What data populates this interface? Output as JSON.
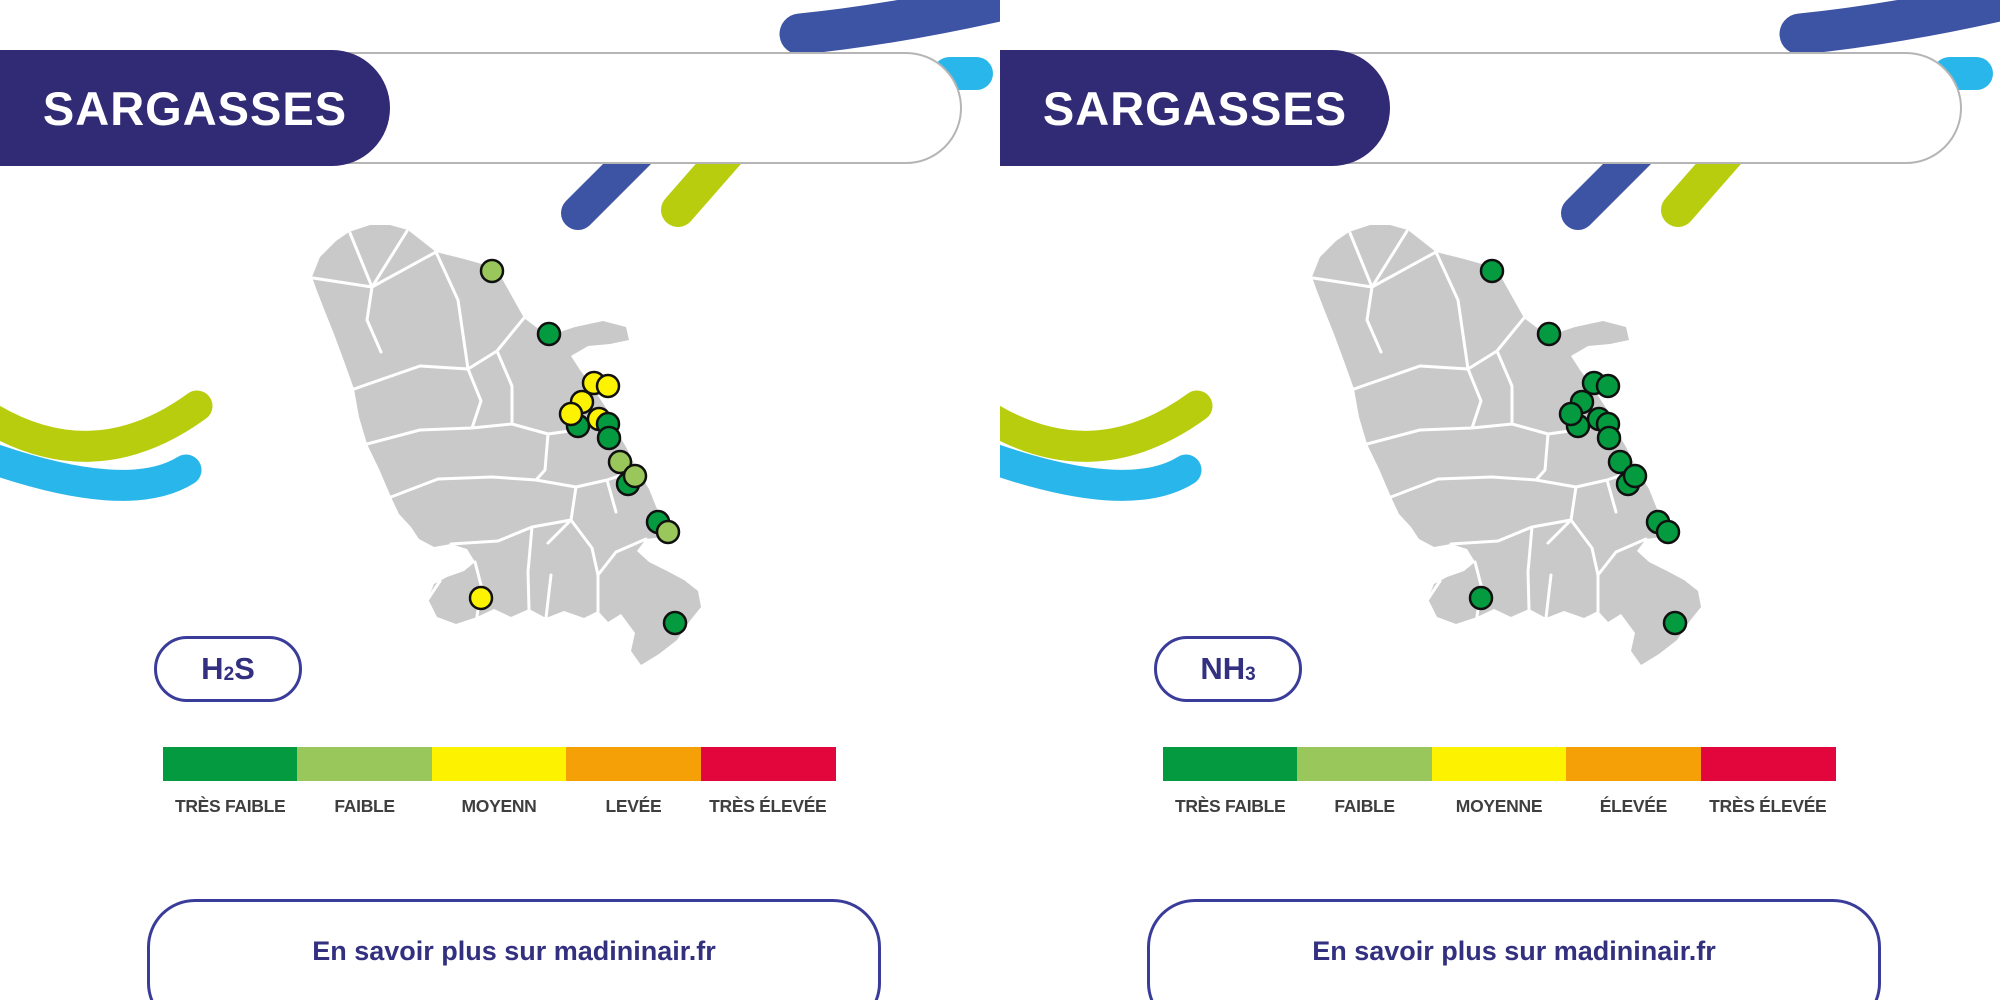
{
  "colors": {
    "navy": "#312a74",
    "pill_border_navy": "#3a3c99",
    "text_navy": "#32307f",
    "pill_border_gray": "#b5b5b5",
    "swoosh_blue": "#3d53a4",
    "swoosh_cyan": "#29b6ea",
    "swoosh_green": "#b9cd0f",
    "map_gray": "#c9c9c9",
    "dot_stroke": "#101010",
    "legend_label_gray": "#3f3f3f",
    "scale": {
      "tres_faible": "#049b40",
      "faible": "#99c75c",
      "moyenne": "#fdf300",
      "elevee": "#f4a006",
      "tres_elevee": "#e3063d"
    }
  },
  "panels": [
    {
      "header": "SARGASSES",
      "pollutant": {
        "pre": "H",
        "sub": "2",
        "post": "S"
      },
      "legend": [
        {
          "label": "TRÈS FAIBLE",
          "level": "tres_faible"
        },
        {
          "label": "FAIBLE",
          "level": "faible"
        },
        {
          "label": "MOYENN",
          "level": "moyenne"
        },
        {
          "label": "LEVÉE",
          "level": "elevee"
        },
        {
          "label": "TRÈS ÉLEVÉE",
          "level": "tres_elevee"
        }
      ],
      "stations": [
        [
          492,
          271,
          "faible"
        ],
        [
          549,
          334,
          "tres_faible"
        ],
        [
          594,
          383,
          "moyenne"
        ],
        [
          608,
          386,
          "moyenne"
        ],
        [
          578,
          426,
          "tres_faible"
        ],
        [
          582,
          402,
          "moyenne"
        ],
        [
          571,
          414,
          "moyenne"
        ],
        [
          599,
          419,
          "moyenne"
        ],
        [
          608,
          424,
          "tres_faible"
        ],
        [
          609,
          438,
          "tres_faible"
        ],
        [
          628,
          484,
          "tres_faible"
        ],
        [
          620,
          462,
          "faible"
        ],
        [
          635,
          476,
          "faible"
        ],
        [
          658,
          522,
          "tres_faible"
        ],
        [
          668,
          532,
          "faible"
        ],
        [
          481,
          598,
          "moyenne"
        ],
        [
          675,
          623,
          "tres_faible"
        ]
      ],
      "link_label": "En savoir plus sur madininair.fr"
    },
    {
      "header": "SARGASSES",
      "pollutant": {
        "pre": "NH",
        "sub": "3",
        "post": ""
      },
      "legend": [
        {
          "label": "TRÈS FAIBLE",
          "level": "tres_faible"
        },
        {
          "label": "FAIBLE",
          "level": "faible"
        },
        {
          "label": "MOYENNE",
          "level": "moyenne"
        },
        {
          "label": "ÉLEVÉE",
          "level": "elevee"
        },
        {
          "label": "TRÈS ÉLEVÉE",
          "level": "tres_elevee"
        }
      ],
      "stations": [
        [
          492,
          271,
          "tres_faible"
        ],
        [
          549,
          334,
          "tres_faible"
        ],
        [
          594,
          383,
          "tres_faible"
        ],
        [
          608,
          386,
          "tres_faible"
        ],
        [
          578,
          426,
          "tres_faible"
        ],
        [
          582,
          402,
          "tres_faible"
        ],
        [
          571,
          414,
          "tres_faible"
        ],
        [
          599,
          419,
          "tres_faible"
        ],
        [
          608,
          424,
          "tres_faible"
        ],
        [
          609,
          438,
          "tres_faible"
        ],
        [
          628,
          484,
          "tres_faible"
        ],
        [
          620,
          462,
          "tres_faible"
        ],
        [
          635,
          476,
          "tres_faible"
        ],
        [
          658,
          522,
          "tres_faible"
        ],
        [
          668,
          532,
          "tres_faible"
        ],
        [
          481,
          598,
          "tres_faible"
        ],
        [
          675,
          623,
          "tres_faible"
        ]
      ],
      "link_label": "En savoir plus sur madininair.fr"
    }
  ]
}
